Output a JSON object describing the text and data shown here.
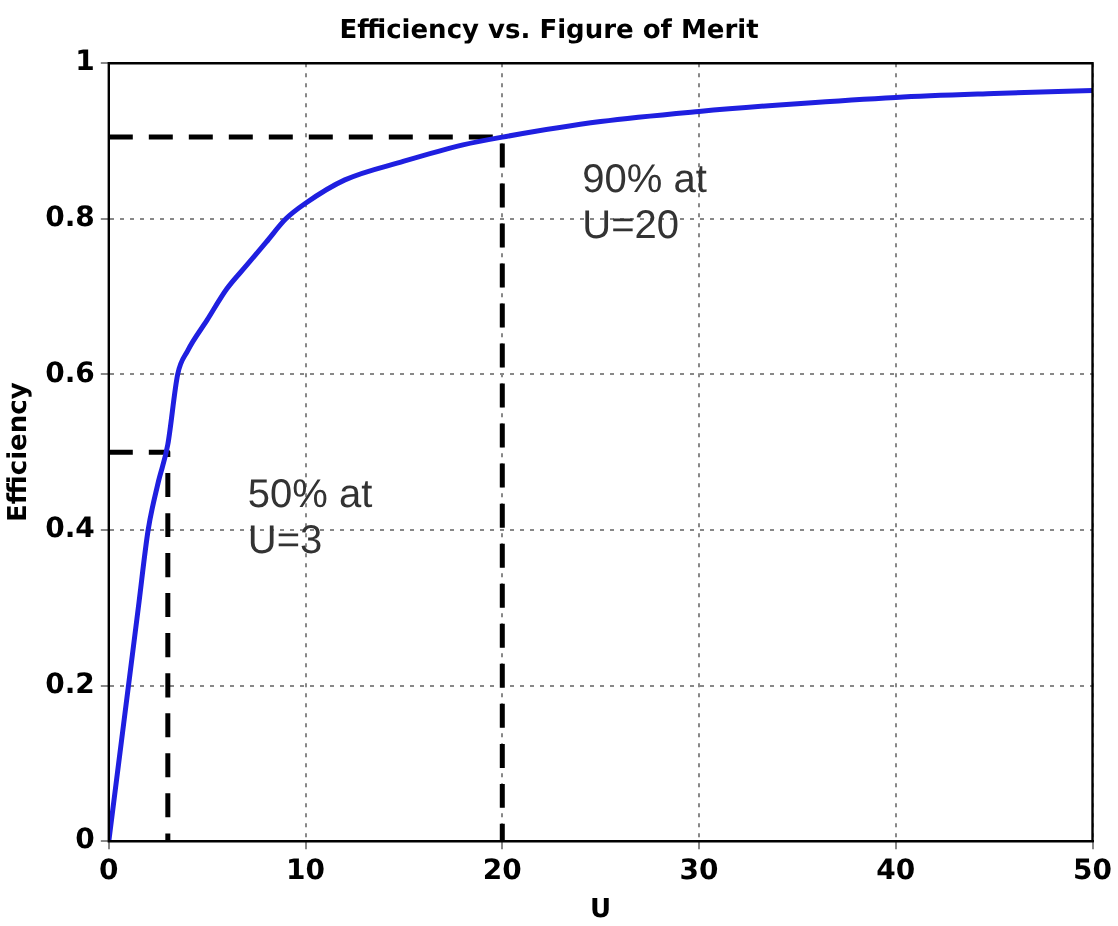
{
  "chart_data": {
    "type": "line",
    "title": "Efficiency vs. Figure of Merit",
    "xlabel": "U",
    "ylabel": "Efficiency",
    "xlim": [
      0,
      50
    ],
    "ylim": [
      0,
      1
    ],
    "xticks": [
      0,
      10,
      20,
      30,
      40,
      50
    ],
    "yticks": [
      0,
      0.2,
      0.4,
      0.6,
      0.8,
      1
    ],
    "grid": true,
    "marker": "none",
    "series": [
      {
        "color": "#1f1fe0",
        "line_style": "solid",
        "x": [
          0,
          0.5,
          1,
          1.5,
          2,
          2.5,
          3,
          3.5,
          4,
          5,
          6,
          7,
          8,
          9,
          10,
          12,
          15,
          18,
          20,
          25,
          30,
          35,
          40,
          45,
          50
        ],
        "values": [
          0,
          0.1,
          0.2,
          0.3,
          0.4,
          0.46,
          0.51,
          0.6,
          0.63,
          0.67,
          0.71,
          0.74,
          0.77,
          0.8,
          0.82,
          0.85,
          0.874,
          0.895,
          0.905,
          0.925,
          0.938,
          0.948,
          0.956,
          0.961,
          0.965
        ]
      },
      {
        "color": "#000000",
        "line_style": "dashed",
        "x": [
          0,
          3,
          3
        ],
        "values": [
          0.5,
          0.5,
          0
        ]
      },
      {
        "color": "#000000",
        "line_style": "dashed",
        "x": [
          0,
          20,
          20
        ],
        "values": [
          0.905,
          0.905,
          0
        ]
      }
    ],
    "annotations": [
      {
        "text": "50% at\nU=3",
        "x": 3,
        "y": 0.5
      },
      {
        "text": "90% at\nU=20",
        "x": 20,
        "y": 0.905
      }
    ]
  }
}
